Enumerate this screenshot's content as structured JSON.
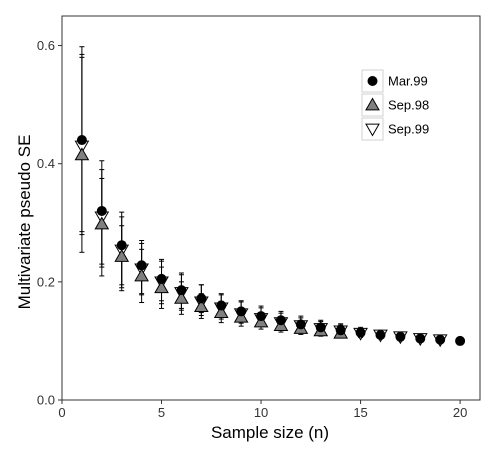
{
  "chart_data": {
    "type": "scatter",
    "title": "",
    "xlabel": "Sample size (n)",
    "ylabel": "Multivariate pseudo SE",
    "xlim": [
      0,
      21
    ],
    "ylim": [
      0,
      0.65
    ],
    "x_ticks": [
      0,
      5,
      10,
      15,
      20
    ],
    "x_tick_labels": [
      "0",
      "5",
      "10",
      "15",
      "20"
    ],
    "y_ticks": [
      0.0,
      0.2,
      0.4,
      0.6
    ],
    "y_tick_labels": [
      "0.0",
      "0.2",
      "0.4",
      "0.6"
    ],
    "grid": false,
    "legend_position": "top-right",
    "series": [
      {
        "name": "Mar.99",
        "marker": "circle",
        "color": "#000000",
        "points": [
          {
            "x": 1,
            "y": 0.44,
            "lo": 0.285,
            "hi": 0.585
          },
          {
            "x": 2,
            "y": 0.32,
            "lo": 0.225,
            "hi": 0.39
          },
          {
            "x": 3,
            "y": 0.262,
            "lo": 0.195,
            "hi": 0.31
          },
          {
            "x": 4,
            "y": 0.228,
            "lo": 0.18,
            "hi": 0.265
          },
          {
            "x": 5,
            "y": 0.205,
            "lo": 0.168,
            "hi": 0.235
          },
          {
            "x": 6,
            "y": 0.186,
            "lo": 0.155,
            "hi": 0.212
          },
          {
            "x": 7,
            "y": 0.172,
            "lo": 0.148,
            "hi": 0.195
          },
          {
            "x": 8,
            "y": 0.16,
            "lo": 0.14,
            "hi": 0.178
          },
          {
            "x": 9,
            "y": 0.15,
            "lo": 0.133,
            "hi": 0.166
          },
          {
            "x": 10,
            "y": 0.142,
            "lo": 0.127,
            "hi": 0.156
          },
          {
            "x": 11,
            "y": 0.135,
            "lo": 0.122,
            "hi": 0.147
          },
          {
            "x": 12,
            "y": 0.128,
            "lo": 0.117,
            "hi": 0.139
          },
          {
            "x": 13,
            "y": 0.123,
            "lo": 0.113,
            "hi": 0.133
          },
          {
            "x": 14,
            "y": 0.118,
            "lo": 0.109,
            "hi": 0.127
          },
          {
            "x": 15,
            "y": 0.114,
            "lo": 0.107,
            "hi": 0.121
          },
          {
            "x": 16,
            "y": 0.11,
            "lo": 0.105,
            "hi": 0.116
          },
          {
            "x": 17,
            "y": 0.107,
            "lo": 0.103,
            "hi": 0.111
          },
          {
            "x": 18,
            "y": 0.104,
            "lo": 0.101,
            "hi": 0.107
          },
          {
            "x": 19,
            "y": 0.102,
            "lo": 0.1,
            "hi": 0.104
          },
          {
            "x": 20,
            "y": 0.1,
            "lo": 0.093,
            "hi": 0.106
          }
        ]
      },
      {
        "name": "Sep.98",
        "marker": "triangle-up",
        "color": "#808080",
        "points": [
          {
            "x": 1,
            "y": 0.415,
            "lo": 0.25,
            "hi": 0.58
          },
          {
            "x": 2,
            "y": 0.298,
            "lo": 0.21,
            "hi": 0.375
          },
          {
            "x": 3,
            "y": 0.243,
            "lo": 0.185,
            "hi": 0.295
          },
          {
            "x": 4,
            "y": 0.21,
            "lo": 0.165,
            "hi": 0.255
          },
          {
            "x": 5,
            "y": 0.19,
            "lo": 0.155,
            "hi": 0.225
          },
          {
            "x": 6,
            "y": 0.172,
            "lo": 0.145,
            "hi": 0.2
          },
          {
            "x": 7,
            "y": 0.158,
            "lo": 0.138,
            "hi": 0.18
          },
          {
            "x": 8,
            "y": 0.148,
            "lo": 0.131,
            "hi": 0.167
          },
          {
            "x": 9,
            "y": 0.14,
            "lo": 0.125,
            "hi": 0.156
          },
          {
            "x": 10,
            "y": 0.132,
            "lo": 0.12,
            "hi": 0.145
          },
          {
            "x": 11,
            "y": 0.126,
            "lo": 0.115,
            "hi": 0.138
          },
          {
            "x": 12,
            "y": 0.121,
            "lo": 0.111,
            "hi": 0.131
          },
          {
            "x": 13,
            "y": 0.117,
            "lo": 0.108,
            "hi": 0.126
          },
          {
            "x": 14,
            "y": 0.113,
            "lo": 0.105,
            "hi": 0.121
          }
        ]
      },
      {
        "name": "Sep.99",
        "marker": "triangle-down",
        "color": "#ffffff",
        "points": [
          {
            "x": 1,
            "y": 0.43,
            "lo": 0.28,
            "hi": 0.598
          },
          {
            "x": 2,
            "y": 0.31,
            "lo": 0.23,
            "hi": 0.405
          },
          {
            "x": 3,
            "y": 0.254,
            "lo": 0.19,
            "hi": 0.318
          },
          {
            "x": 4,
            "y": 0.222,
            "lo": 0.178,
            "hi": 0.27
          },
          {
            "x": 5,
            "y": 0.2,
            "lo": 0.163,
            "hi": 0.238
          },
          {
            "x": 6,
            "y": 0.182,
            "lo": 0.152,
            "hi": 0.215
          },
          {
            "x": 7,
            "y": 0.166,
            "lo": 0.143,
            "hi": 0.195
          },
          {
            "x": 8,
            "y": 0.156,
            "lo": 0.137,
            "hi": 0.18
          },
          {
            "x": 9,
            "y": 0.146,
            "lo": 0.13,
            "hi": 0.168
          },
          {
            "x": 10,
            "y": 0.138,
            "lo": 0.124,
            "hi": 0.159
          },
          {
            "x": 11,
            "y": 0.131,
            "lo": 0.119,
            "hi": 0.15
          },
          {
            "x": 12,
            "y": 0.126,
            "lo": 0.115,
            "hi": 0.142
          },
          {
            "x": 13,
            "y": 0.121,
            "lo": 0.111,
            "hi": 0.135
          },
          {
            "x": 14,
            "y": 0.117,
            "lo": 0.108,
            "hi": 0.129
          },
          {
            "x": 15,
            "y": 0.113,
            "lo": 0.106,
            "hi": 0.123
          },
          {
            "x": 16,
            "y": 0.11,
            "lo": 0.104,
            "hi": 0.118
          },
          {
            "x": 17,
            "y": 0.107,
            "lo": 0.102,
            "hi": 0.113
          },
          {
            "x": 18,
            "y": 0.104,
            "lo": 0.1,
            "hi": 0.109
          },
          {
            "x": 19,
            "y": 0.102,
            "lo": 0.099,
            "hi": 0.106
          }
        ]
      }
    ]
  }
}
